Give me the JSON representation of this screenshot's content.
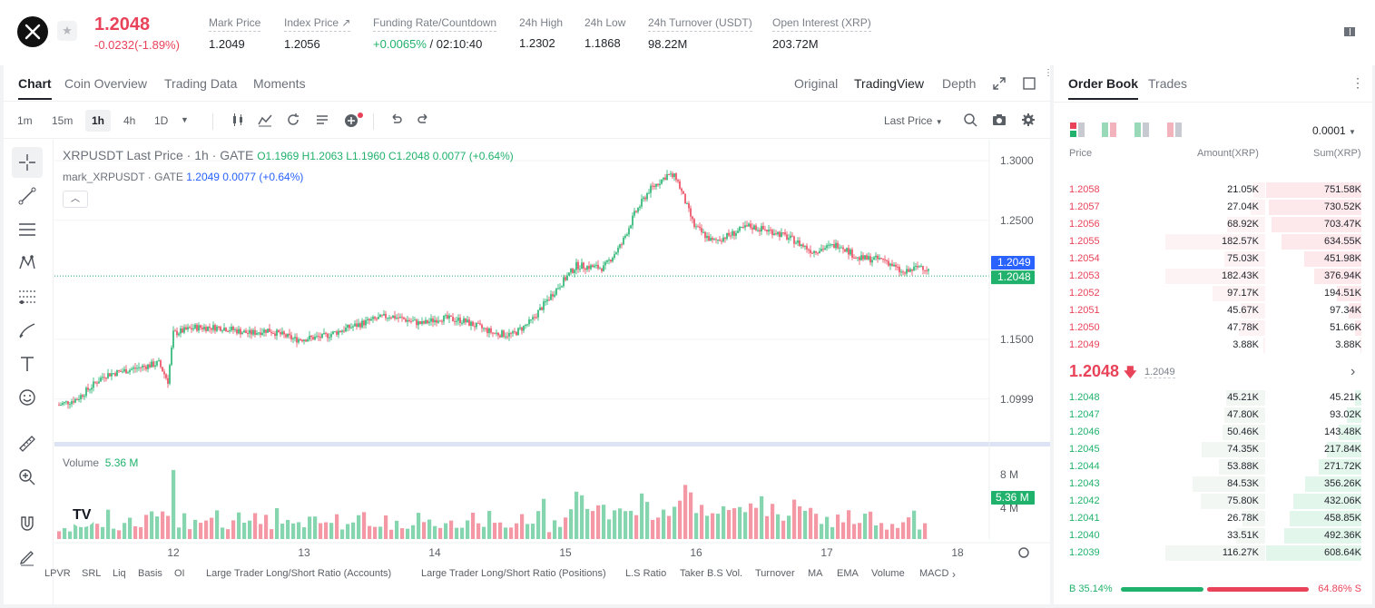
{
  "ticker": {
    "last_price": "1.2048",
    "change": "-0.0232(-1.89%)",
    "stats": [
      {
        "label": "Mark Price",
        "value": "1.2049"
      },
      {
        "label": "Index Price ↗",
        "value": "1.2056"
      },
      {
        "label": "Funding Rate/Countdown",
        "value_up": "+0.0065%",
        "value": " / 02:10:40"
      },
      {
        "label": "24h High",
        "value": "1.2302"
      },
      {
        "label": "24h Low",
        "value": "1.1868"
      },
      {
        "label": "24h Turnover (USDT)",
        "value": "98.22M"
      },
      {
        "label": "Open Interest (XRP)",
        "value": "203.72M"
      }
    ]
  },
  "chart_tabs": [
    "Chart",
    "Coin Overview",
    "Trading Data",
    "Moments"
  ],
  "view_tabs": [
    "Original",
    "TradingView",
    "Depth"
  ],
  "timeframes": [
    "1m",
    "15m",
    "1h",
    "4h",
    "1D"
  ],
  "active_timeframe": "1h",
  "price_source": "Last Price",
  "legend": {
    "title": "XRPUSDT Last Price · 1h · GATE",
    "ohlc": "O1.1969  H1.2063  L1.1960  C1.2048  0.0077 (+0.64%)",
    "mark_name": "mark_XRPUSDT · GATE",
    "mark_values": "1.2049  0.0077 (+0.64%)"
  },
  "volume": {
    "label": "Volume",
    "value": "5.36 M"
  },
  "price_axis": [
    "1.3000",
    "1.2500",
    "1.1500",
    "1.0999"
  ],
  "price_tags": {
    "mark": "1.2049",
    "last": "1.2048"
  },
  "volume_axis": [
    "8 M",
    "4 M"
  ],
  "volume_tag": "5.36 M",
  "time_axis": [
    "12",
    "13",
    "14",
    "15",
    "16",
    "17",
    "18"
  ],
  "indicators": [
    "LPVR",
    "SRL",
    "Liq",
    "Basis",
    "OI",
    "Large Trader Long/Short Ratio (Accounts)",
    "Large Trader Long/Short Ratio (Positions)",
    "L.S Ratio",
    "Taker B.S Vol.",
    "Turnover",
    "MA",
    "EMA",
    "Volume",
    "MACD"
  ],
  "order_book": {
    "tabs": [
      "Order Book",
      "Trades"
    ],
    "precision": "0.0001",
    "headers": {
      "price": "Price",
      "amount": "Amount(XRP)",
      "sum": "Sum(XRP)"
    },
    "asks": [
      {
        "price": "1.2058",
        "amount": "21.05K",
        "sum": "751.58K",
        "amt_ratio": 0.12,
        "sum_ratio": 1.0
      },
      {
        "price": "1.2057",
        "amount": "27.04K",
        "sum": "730.52K",
        "amt_ratio": 0.15,
        "sum_ratio": 0.97
      },
      {
        "price": "1.2056",
        "amount": "68.92K",
        "sum": "703.47K",
        "amt_ratio": 0.38,
        "sum_ratio": 0.94
      },
      {
        "price": "1.2055",
        "amount": "182.57K",
        "sum": "634.55K",
        "amt_ratio": 1.0,
        "sum_ratio": 0.84
      },
      {
        "price": "1.2054",
        "amount": "75.03K",
        "sum": "451.98K",
        "amt_ratio": 0.41,
        "sum_ratio": 0.6
      },
      {
        "price": "1.2053",
        "amount": "182.43K",
        "sum": "376.94K",
        "amt_ratio": 1.0,
        "sum_ratio": 0.5
      },
      {
        "price": "1.2052",
        "amount": "97.17K",
        "sum": "194.51K",
        "amt_ratio": 0.53,
        "sum_ratio": 0.26
      },
      {
        "price": "1.2051",
        "amount": "45.67K",
        "sum": "97.34K",
        "amt_ratio": 0.25,
        "sum_ratio": 0.13
      },
      {
        "price": "1.2050",
        "amount": "47.78K",
        "sum": "51.66K",
        "amt_ratio": 0.26,
        "sum_ratio": 0.07
      },
      {
        "price": "1.2049",
        "amount": "3.88K",
        "sum": "3.88K",
        "amt_ratio": 0.02,
        "sum_ratio": 0.01
      }
    ],
    "mid_price": "1.2048",
    "mark_price": "1.2049",
    "bids": [
      {
        "price": "1.2048",
        "amount": "45.21K",
        "sum": "45.21K",
        "amt_ratio": 0.39,
        "sum_ratio": 0.07
      },
      {
        "price": "1.2047",
        "amount": "47.80K",
        "sum": "93.02K",
        "amt_ratio": 0.41,
        "sum_ratio": 0.15
      },
      {
        "price": "1.2046",
        "amount": "50.46K",
        "sum": "143.48K",
        "amt_ratio": 0.43,
        "sum_ratio": 0.24
      },
      {
        "price": "1.2045",
        "amount": "74.35K",
        "sum": "217.84K",
        "amt_ratio": 0.64,
        "sum_ratio": 0.36
      },
      {
        "price": "1.2044",
        "amount": "53.88K",
        "sum": "271.72K",
        "amt_ratio": 0.46,
        "sum_ratio": 0.45
      },
      {
        "price": "1.2043",
        "amount": "84.53K",
        "sum": "356.26K",
        "amt_ratio": 0.73,
        "sum_ratio": 0.59
      },
      {
        "price": "1.2042",
        "amount": "75.80K",
        "sum": "432.06K",
        "amt_ratio": 0.65,
        "sum_ratio": 0.71
      },
      {
        "price": "1.2041",
        "amount": "26.78K",
        "sum": "458.85K",
        "amt_ratio": 0.23,
        "sum_ratio": 0.75
      },
      {
        "price": "1.2040",
        "amount": "33.51K",
        "sum": "492.36K",
        "amt_ratio": 0.29,
        "sum_ratio": 0.81
      },
      {
        "price": "1.2039",
        "amount": "116.27K",
        "sum": "608.64K",
        "amt_ratio": 1.0,
        "sum_ratio": 1.0
      }
    ],
    "buy_label": "B 35.14%",
    "sell_label": "64.86% S",
    "buy_ratio": 0.3514
  },
  "colors": {
    "up": "#20b26c",
    "down": "#e94359",
    "blue": "#2962ff"
  }
}
